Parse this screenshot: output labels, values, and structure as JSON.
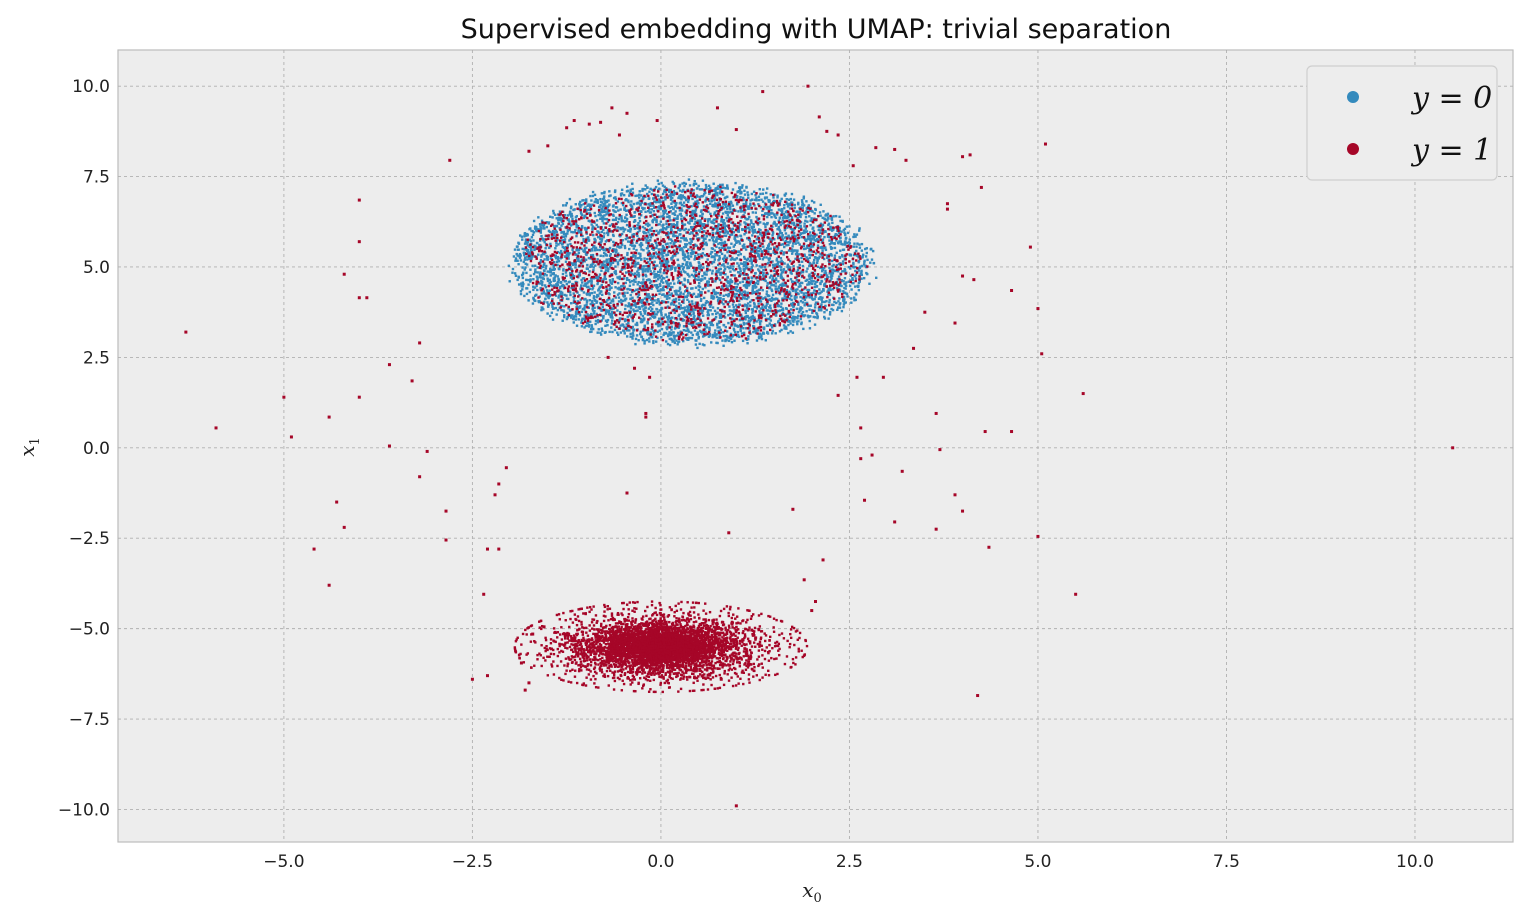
{
  "chart_data": {
    "type": "scatter",
    "title": "Supervised embedding with UMAP: trivial separation",
    "xlabel": "x",
    "xlabel_sub": "0",
    "ylabel": "x",
    "ylabel_sub": "1",
    "xlim": [
      -7.2,
      11.3
    ],
    "ylim": [
      -10.9,
      11.0
    ],
    "xticks": [
      -5.0,
      -2.5,
      0.0,
      2.5,
      5.0,
      7.5,
      10.0
    ],
    "xtick_labels": [
      "−5.0",
      "−2.5",
      "0.0",
      "2.5",
      "5.0",
      "7.5",
      "10.0"
    ],
    "yticks": [
      10.0,
      7.5,
      5.0,
      2.5,
      0.0,
      -2.5,
      -5.0,
      -7.5,
      -10.0
    ],
    "ytick_labels": [
      "10.0",
      "7.5",
      "5.0",
      "2.5",
      "0.0",
      "−2.5",
      "−5.0",
      "−7.5",
      "−10.0"
    ],
    "grid": true,
    "legend_position": "top-right",
    "colors": {
      "y0": "#348abd",
      "y1": "#a60628",
      "background": "#ededed",
      "grid": "#b0b0b0"
    },
    "series": [
      {
        "name": "y = 0",
        "legend_label": "y = 0",
        "color": "#348abd",
        "clusters": [
          {
            "center": [
              0.4,
              5.1
            ],
            "spread": [
              2.45,
              2.3
            ],
            "shape": "ellipse",
            "approx_points": 5200
          }
        ],
        "points": []
      },
      {
        "name": "y = 1",
        "legend_label": "y = 1",
        "color": "#a60628",
        "clusters": [
          {
            "center": [
              0.0,
              -5.5
            ],
            "spread": [
              1.55,
              1.0
            ],
            "shape": "dense-ellipse",
            "approx_points": 6000
          },
          {
            "center": [
              0.4,
              5.1
            ],
            "spread": [
              2.3,
              2.15
            ],
            "shape": "sparse-ellipse",
            "approx_points": 1400
          }
        ],
        "points": [
          [
            -6.3,
            3.2
          ],
          [
            -5.9,
            0.55
          ],
          [
            -5.0,
            1.4
          ],
          [
            -4.9,
            0.3
          ],
          [
            -4.6,
            -2.8
          ],
          [
            -4.4,
            0.85
          ],
          [
            -4.4,
            -3.8
          ],
          [
            -4.3,
            -1.5
          ],
          [
            -4.2,
            4.8
          ],
          [
            -4.2,
            -2.2
          ],
          [
            -4.0,
            6.85
          ],
          [
            -4.0,
            5.7
          ],
          [
            -4.0,
            4.15
          ],
          [
            -3.9,
            4.15
          ],
          [
            -4.0,
            1.4
          ],
          [
            -3.6,
            2.3
          ],
          [
            -3.6,
            0.05
          ],
          [
            -3.3,
            1.85
          ],
          [
            -3.2,
            2.9
          ],
          [
            -3.2,
            -0.8
          ],
          [
            -3.1,
            -0.1
          ],
          [
            -2.8,
            7.95
          ],
          [
            -2.85,
            -1.75
          ],
          [
            -2.85,
            -2.55
          ],
          [
            -2.3,
            -2.8
          ],
          [
            -2.2,
            -1.3
          ],
          [
            -2.15,
            -2.8
          ],
          [
            -2.05,
            -0.55
          ],
          [
            -2.15,
            -1.0
          ],
          [
            -2.35,
            -4.05
          ],
          [
            -2.3,
            -6.3
          ],
          [
            -2.5,
            -6.4
          ],
          [
            -1.75,
            8.2
          ],
          [
            -1.5,
            8.35
          ],
          [
            -1.25,
            8.85
          ],
          [
            -1.15,
            9.05
          ],
          [
            -0.95,
            8.95
          ],
          [
            -0.8,
            9.0
          ],
          [
            -0.65,
            9.4
          ],
          [
            -0.55,
            8.65
          ],
          [
            -0.45,
            9.25
          ],
          [
            -0.05,
            9.05
          ],
          [
            0.75,
            9.4
          ],
          [
            1.0,
            8.8
          ],
          [
            1.35,
            9.85
          ],
          [
            1.95,
            10.0
          ],
          [
            2.1,
            9.15
          ],
          [
            2.2,
            8.75
          ],
          [
            2.35,
            8.65
          ],
          [
            2.85,
            8.3
          ],
          [
            3.1,
            8.25
          ],
          [
            3.25,
            7.95
          ],
          [
            2.55,
            7.8
          ],
          [
            4.0,
            8.05
          ],
          [
            4.1,
            8.1
          ],
          [
            4.25,
            7.2
          ],
          [
            3.8,
            6.75
          ],
          [
            3.8,
            6.6
          ],
          [
            4.9,
            5.55
          ],
          [
            4.0,
            4.75
          ],
          [
            4.15,
            4.65
          ],
          [
            4.65,
            4.35
          ],
          [
            5.1,
            8.4
          ],
          [
            5.0,
            3.85
          ],
          [
            5.05,
            2.6
          ],
          [
            3.9,
            3.45
          ],
          [
            3.5,
            3.75
          ],
          [
            3.35,
            2.75
          ],
          [
            2.95,
            1.95
          ],
          [
            2.6,
            1.95
          ],
          [
            2.35,
            1.45
          ],
          [
            2.65,
            0.55
          ],
          [
            3.65,
            0.95
          ],
          [
            4.3,
            0.45
          ],
          [
            4.65,
            0.45
          ],
          [
            5.6,
            1.5
          ],
          [
            3.7,
            -0.05
          ],
          [
            3.2,
            -0.65
          ],
          [
            2.8,
            -0.2
          ],
          [
            2.65,
            -0.3
          ],
          [
            2.7,
            -1.45
          ],
          [
            3.1,
            -2.05
          ],
          [
            3.9,
            -1.3
          ],
          [
            4.0,
            -1.75
          ],
          [
            3.65,
            -2.25
          ],
          [
            4.35,
            -2.75
          ],
          [
            5.0,
            -2.45
          ],
          [
            5.5,
            -4.05
          ],
          [
            4.2,
            -6.85
          ],
          [
            10.5,
            0.0
          ],
          [
            1.75,
            -1.7
          ],
          [
            2.15,
            -3.1
          ],
          [
            1.9,
            -3.65
          ],
          [
            2.05,
            -4.25
          ],
          [
            2.0,
            -4.5
          ],
          [
            0.9,
            -2.35
          ],
          [
            -0.45,
            -1.25
          ],
          [
            -0.2,
            0.95
          ],
          [
            -0.2,
            0.85
          ],
          [
            -0.35,
            2.2
          ],
          [
            -0.15,
            1.95
          ],
          [
            -0.7,
            2.5
          ],
          [
            1.0,
            -9.9
          ],
          [
            0.8,
            -6.4
          ],
          [
            -1.8,
            -6.7
          ],
          [
            -1.75,
            -6.5
          ],
          [
            -1.85,
            -5.95
          ],
          [
            -1.7,
            -5.15
          ],
          [
            -1.55,
            -4.95
          ]
        ]
      }
    ]
  }
}
